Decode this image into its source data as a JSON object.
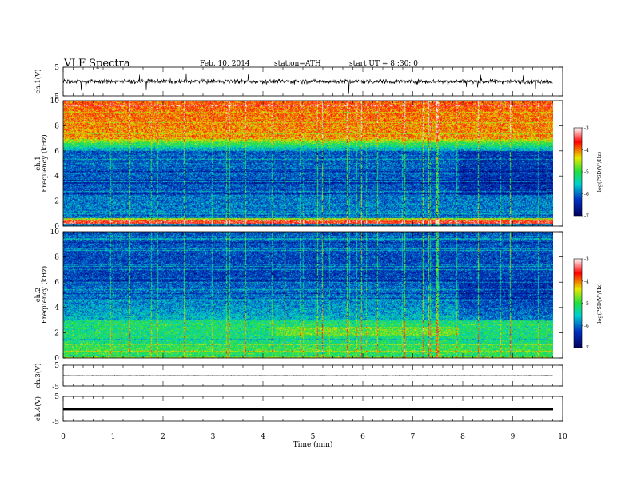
{
  "header": {
    "title": "VLF Spectra",
    "date": "Feb. 10, 2014",
    "station": "station=ATH",
    "start_ut": "start UT =  8 :30: 0"
  },
  "colors": {
    "palette": [
      "#000060",
      "#0030c0",
      "#00d0d0",
      "#20e040",
      "#e8e800",
      "#ff0000",
      "#ffffff"
    ],
    "trace": "#000000"
  },
  "chart_data": [
    {
      "type": "line",
      "name": "ch1-waveform",
      "ylabel": "ch.1(V)",
      "ylim": [
        -5,
        5
      ],
      "yticks": [
        "5",
        "-5"
      ],
      "x_range_min": [
        0,
        9.8
      ],
      "typical_amplitude": 0.8,
      "spike_amplitude": 4.5
    },
    {
      "type": "heatmap",
      "name": "ch1-spectrogram",
      "ylabel": [
        "ch.1",
        "Frequency  (kHz)"
      ],
      "ylim": [
        0,
        10
      ],
      "yticks": [
        "0",
        "2",
        "4",
        "6",
        "8",
        "10"
      ],
      "x_range_min": [
        0,
        9.8
      ],
      "colorbar": {
        "label": "log(PSD(V²/Hz)",
        "range": [
          -7,
          -3
        ],
        "ticks": [
          "-3",
          "-4",
          "-5",
          "-6",
          "-7"
        ]
      },
      "description": "high PSD (-3.5) above 7 kHz, low (-6.5) 3-6 kHz, strong narrowband lines at 0.3-0.7 kHz"
    },
    {
      "type": "heatmap",
      "name": "ch2-spectrogram",
      "ylabel": [
        "ch.2",
        "Frequency  (kHz)"
      ],
      "ylim": [
        0,
        10
      ],
      "yticks": [
        "0",
        "2",
        "4",
        "6",
        "8",
        "10"
      ],
      "x_range_min": [
        0,
        9.8
      ],
      "colorbar": {
        "label": "log(PSD(V²/Hz)",
        "range": [
          -7,
          -3
        ],
        "ticks": [
          "-3",
          "-4",
          "-5",
          "-6",
          "-7"
        ]
      },
      "description": "moderate PSD (-5) overall, lower above 5 kHz, stronger bands near 1.5-2.5 kHz"
    },
    {
      "type": "line",
      "name": "ch3-waveform",
      "ylabel": "ch.3(V)",
      "ylim": [
        -5,
        5
      ],
      "yticks": [
        "5",
        "-5"
      ],
      "x_range_min": [
        0,
        9.8
      ],
      "typical_amplitude": 0.1
    },
    {
      "type": "line",
      "name": "ch4-waveform",
      "ylabel": "ch.4(V)",
      "ylim": [
        -5,
        5
      ],
      "yticks": [
        "5",
        "-5"
      ],
      "x_range_min": [
        0,
        9.8
      ],
      "typical_amplitude": 0.3
    }
  ],
  "xaxis": {
    "label": "Time  (min)",
    "ticks": [
      "0",
      "1",
      "2",
      "3",
      "4",
      "5",
      "6",
      "7",
      "8",
      "9",
      "10"
    ],
    "range": [
      0,
      10
    ]
  }
}
